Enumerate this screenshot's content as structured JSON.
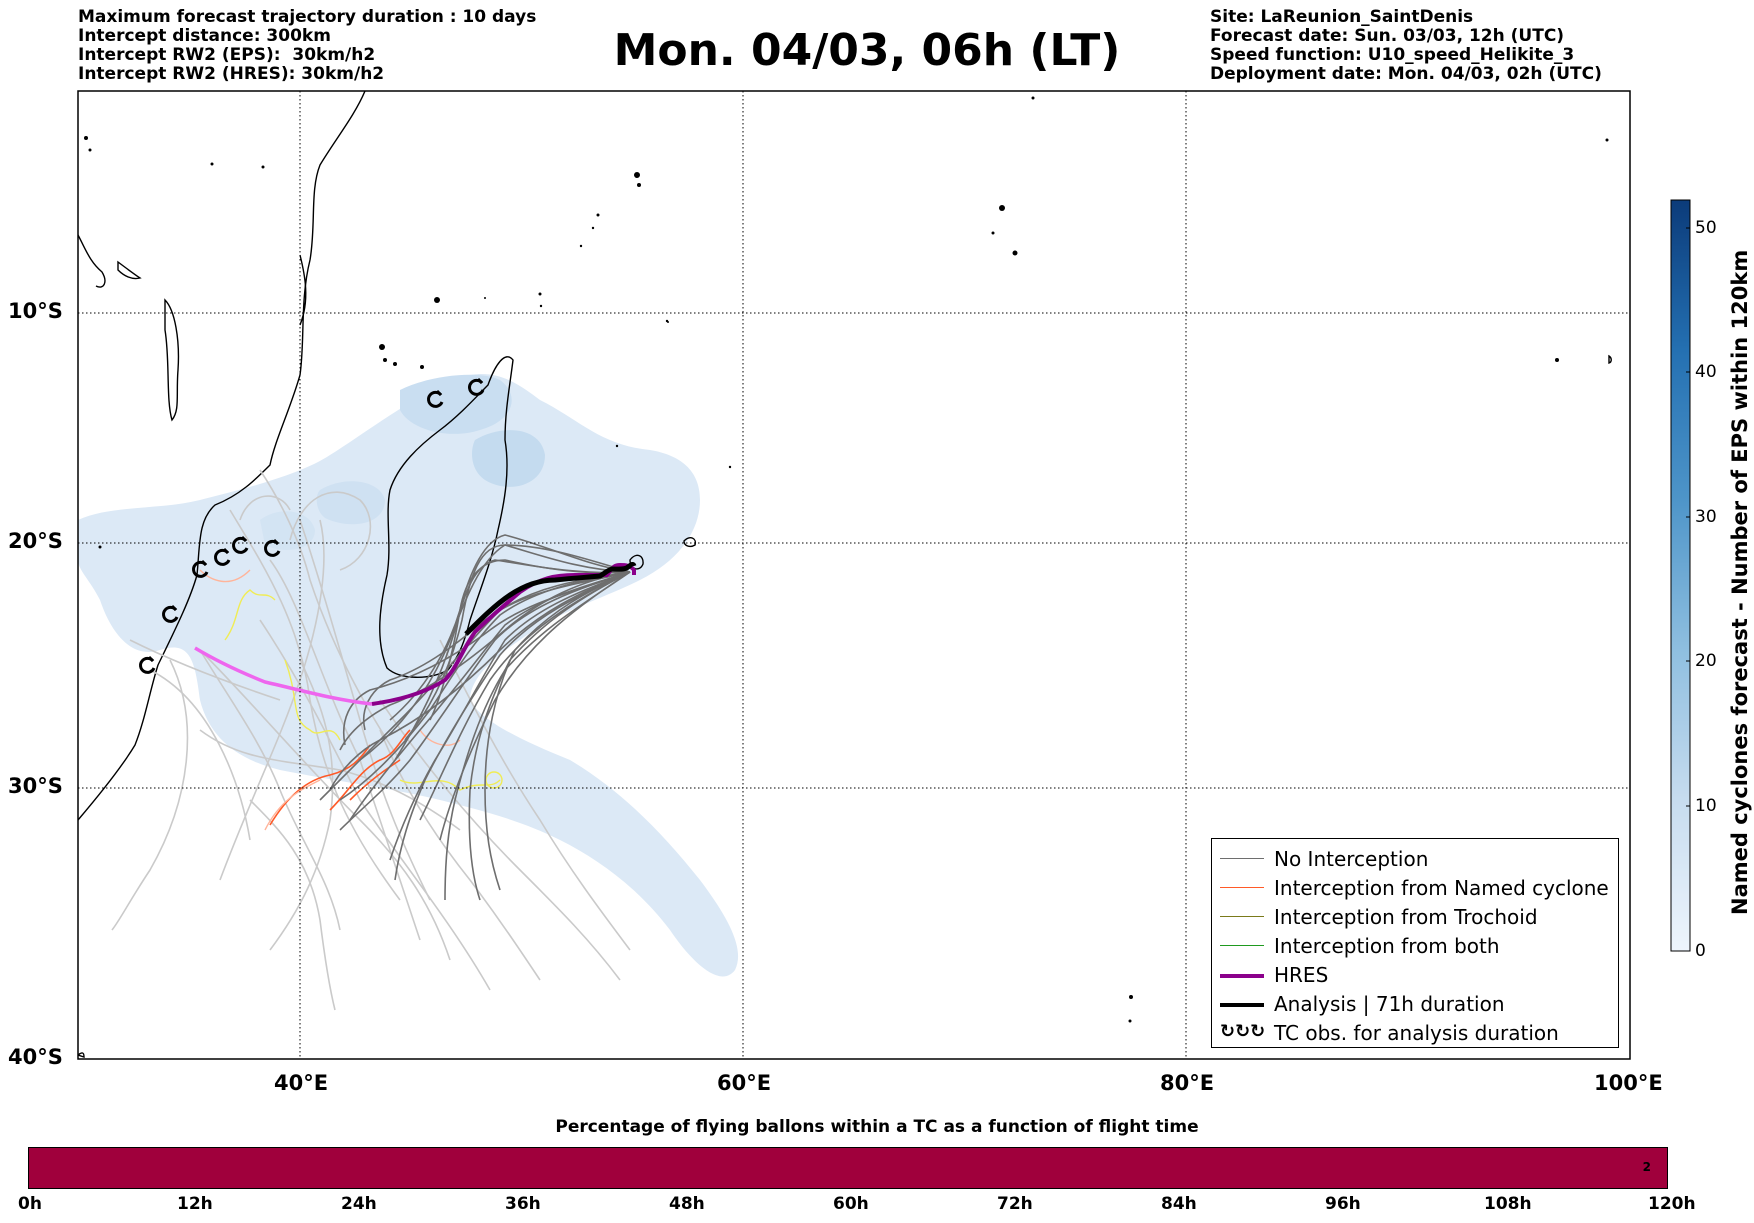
{
  "header_left": [
    "Maximum forecast trajectory duration : 10 days",
    "Intercept distance: 300km",
    "Intercept RW2 (EPS):  30km/h2",
    "Intercept RW2 (HRES): 30km/h2"
  ],
  "title": "Mon. 04/03, 06h (LT)",
  "header_right": [
    "Site: LaReunion_SaintDenis",
    "Forecast date: Sun. 03/03, 12h (UTC)",
    "Speed function: U10_speed_Helikite_3",
    "Deployment date: Mon. 04/03, 02h (UTC)"
  ],
  "map": {
    "lat_ticks": [
      "10°S",
      "20°S",
      "30°S",
      "40°S"
    ],
    "lon_ticks": [
      "40°E",
      "60°E",
      "80°E",
      "100°E"
    ],
    "colors": {
      "no_interception": "#6e6e6e",
      "no_interception_light": "#c8c8c8",
      "named_cyclone": "#ff5a28",
      "trochoid": "#7a7a1a",
      "both": "#1f9a1f",
      "hres": "#8b008b",
      "hres_light": "#ee66ee",
      "analysis": "#000000",
      "tc_density": "#bcd6ec",
      "trochoid_light": "#f2f04a"
    }
  },
  "colorbar": {
    "label": "Named cyclones forecast - Number of EPS within 120km",
    "ticks": [
      "0",
      "10",
      "20",
      "30",
      "40",
      "50"
    ]
  },
  "legend": [
    {
      "label": "No Interception",
      "color": "#6e6e6e",
      "style": "thin"
    },
    {
      "label": "Interception from Named cyclone",
      "color": "#ff5a28",
      "style": "thin"
    },
    {
      "label": "Interception from Trochoid",
      "color": "#7a7a1a",
      "style": "thin"
    },
    {
      "label": "Interception from both",
      "color": "#1f9a1f",
      "style": "thin"
    },
    {
      "label": "HRES",
      "color": "#8b008b",
      "style": "thick"
    },
    {
      "label": "Analysis | 71h duration",
      "color": "#000000",
      "style": "thick"
    },
    {
      "label": "TC obs. for analysis duration",
      "color": "#000000",
      "style": "symbol"
    }
  ],
  "bottom": {
    "title": "Percentage of flying ballons within a TC as a function of flight time",
    "ticks": [
      "0h",
      "12h",
      "24h",
      "36h",
      "48h",
      "60h",
      "72h",
      "84h",
      "96h",
      "108h",
      "120h"
    ],
    "end_value": "2",
    "bar_color": "#a0003c"
  }
}
